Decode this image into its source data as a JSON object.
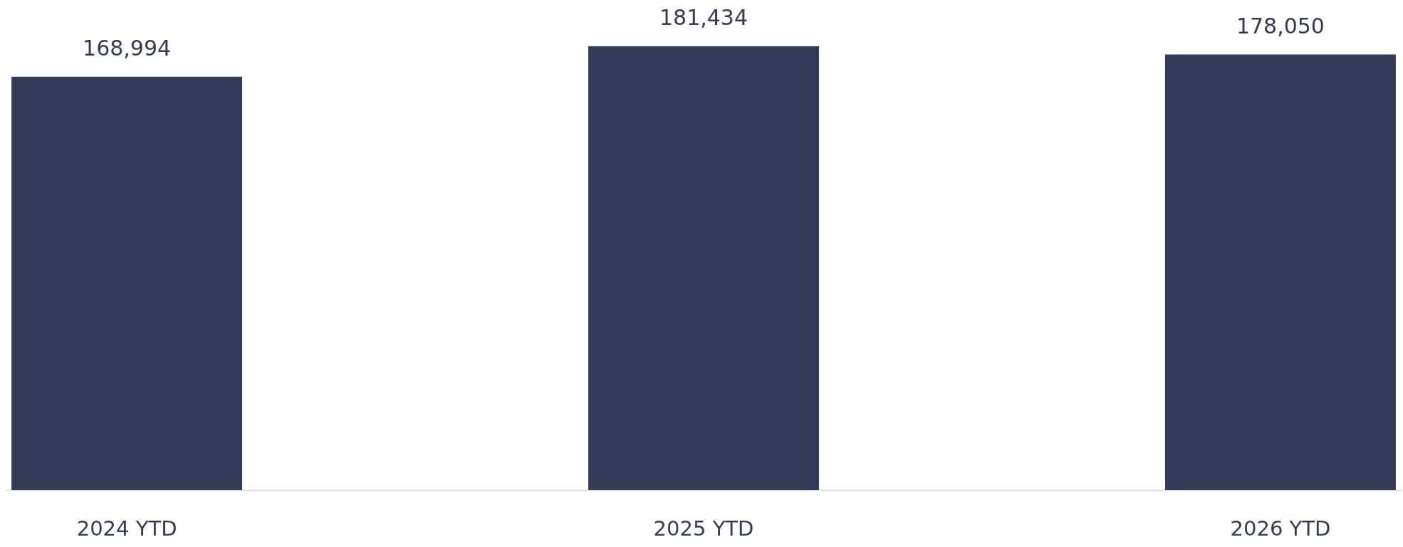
{
  "chart_data": {
    "type": "bar",
    "categories": [
      "2024 YTD",
      "2025 YTD",
      "2026 YTD"
    ],
    "values": [
      168994,
      181434,
      178050
    ],
    "value_labels": [
      "168,994",
      "181,434",
      "178,050"
    ],
    "color": "#343b5a"
  }
}
